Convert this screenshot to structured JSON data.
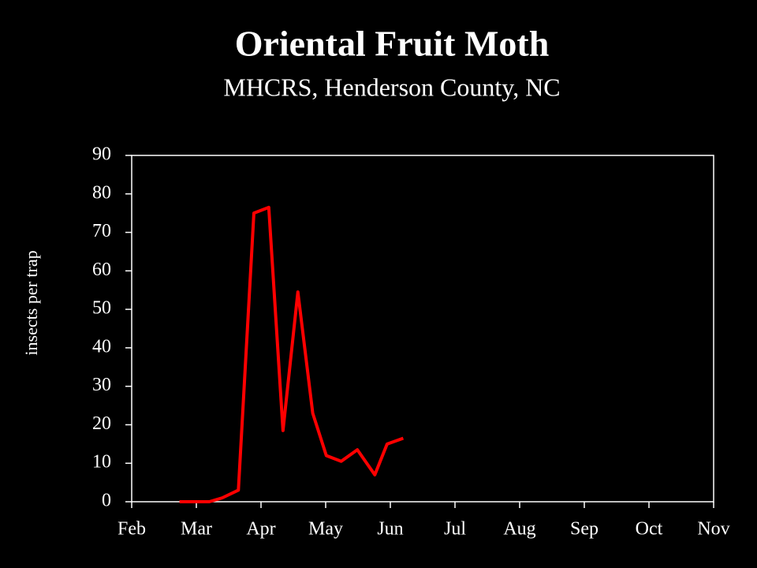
{
  "chart_data": {
    "type": "line",
    "title": "Oriental Fruit Moth",
    "subtitle": "MHCRS, Henderson County, NC",
    "y_label": "insects per trap",
    "x": [
      0.74,
      0.98,
      1.2,
      1.4,
      1.65,
      1.89,
      2.12,
      2.34,
      2.57,
      2.8,
      3.01,
      3.24,
      3.49,
      3.76,
      3.95,
      4.2
    ],
    "values": [
      0,
      0,
      0,
      1,
      3,
      75,
      76.5,
      18.5,
      54.5,
      23,
      12,
      10.5,
      13.5,
      7,
      15,
      16.5
    ],
    "color": "#ff0000",
    "xlim": [
      0,
      9
    ],
    "xticks": [
      {
        "value": 0,
        "label": "Feb"
      },
      {
        "value": 1,
        "label": "Mar"
      },
      {
        "value": 2,
        "label": "Apr"
      },
      {
        "value": 3,
        "label": "May"
      },
      {
        "value": 4,
        "label": "Jun"
      },
      {
        "value": 5,
        "label": "Jul"
      },
      {
        "value": 6,
        "label": "Aug"
      },
      {
        "value": 7,
        "label": "Sep"
      },
      {
        "value": 8,
        "label": "Oct"
      },
      {
        "value": 9,
        "label": "Nov"
      }
    ],
    "ylim": [
      0,
      90
    ],
    "yticks": [
      0,
      10,
      20,
      30,
      40,
      50,
      60,
      70,
      80,
      90
    ],
    "grid": false
  }
}
